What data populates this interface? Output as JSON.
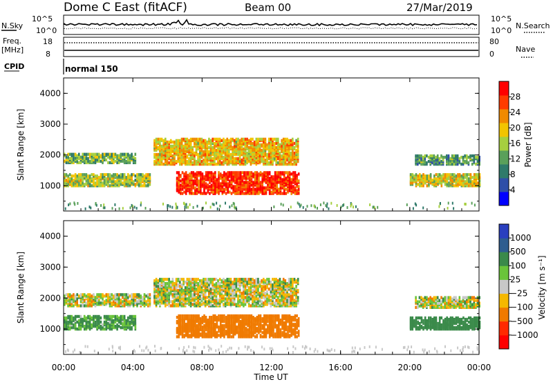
{
  "header": {
    "title": "Dome C East (fitACF)",
    "beam": "Beam 00",
    "date": "27/Mar/2019"
  },
  "aux_panels": {
    "nsky_label": "N.Sky",
    "nsky_ticks": [
      "10^5",
      "10^0"
    ],
    "nsearch_label": "N.Search",
    "nsearch_ticks": [
      "10^5",
      "10^0"
    ],
    "freq_label_1": "Freq.",
    "freq_label_2": "[MHz]",
    "freq_ticks": [
      "18",
      "8"
    ],
    "nave_label": "Nave",
    "nave_ticks": [
      "80",
      "0"
    ],
    "cpid_label": "CPID",
    "cpid_value": "normal 150"
  },
  "chart_data": [
    {
      "type": "heatmap",
      "title": "",
      "xlabel": "",
      "ylabel": "Slant Range [km]",
      "xlim": [
        0,
        24
      ],
      "ylim": [
        180,
        4500
      ],
      "y_ticks": [
        "1000",
        "2000",
        "3000",
        "4000"
      ],
      "x_ticks": [
        "00:00",
        "04:00",
        "08:00",
        "12:00",
        "16:00",
        "20:00",
        "00:00"
      ],
      "colorbar": {
        "label": "Power [dB]",
        "ticks": [
          "28",
          "24",
          "20",
          "16",
          "12",
          "8",
          "4"
        ],
        "levels": [
          "#0000ff",
          "#2f4fa8",
          "#2f7a6a",
          "#5aa05a",
          "#a6cf3f",
          "#f2c400",
          "#f08a00",
          "#ff3c00",
          "#ff0000"
        ]
      },
      "regions": [
        {
          "t0": 0.0,
          "t1": 4.2,
          "r0": 1700,
          "r1": 2000,
          "value_db": 12
        },
        {
          "t0": 0.0,
          "t1": 5.0,
          "r0": 950,
          "r1": 1350,
          "value_db": 14
        },
        {
          "t0": 5.2,
          "t1": 13.6,
          "r0": 1650,
          "r1": 2500,
          "value_db": 18
        },
        {
          "t0": 6.5,
          "t1": 13.6,
          "r0": 700,
          "r1": 1400,
          "value_db": 26
        },
        {
          "t0": 20.3,
          "t1": 24.0,
          "r0": 1650,
          "r1": 1950,
          "value_db": 10
        },
        {
          "t0": 20.0,
          "t1": 24.0,
          "r0": 950,
          "r1": 1350,
          "value_db": 16
        }
      ]
    },
    {
      "type": "heatmap",
      "title": "",
      "xlabel": "Time UT",
      "ylabel": "Slant Range [km]",
      "xlim": [
        0,
        24
      ],
      "ylim": [
        180,
        4500
      ],
      "y_ticks": [
        "1000",
        "2000",
        "3000",
        "4000"
      ],
      "x_ticks": [
        "00:00",
        "04:00",
        "08:00",
        "12:00",
        "16:00",
        "20:00",
        "00:00"
      ],
      "colorbar": {
        "label": "Velocity [m s⁻¹]",
        "ticks": [
          "1000",
          "500",
          "100",
          "25",
          "−25",
          "−100",
          "−500",
          "−1000"
        ],
        "levels": [
          "#2a3fbf",
          "#2e5d8f",
          "#3a8a4a",
          "#6ac43a",
          "#c8c8c8",
          "#f5b800",
          "#f07a00",
          "#ff2a00",
          "#ff0000"
        ]
      },
      "regions": [
        {
          "t0": 0.0,
          "t1": 5.0,
          "r0": 1700,
          "r1": 2100,
          "value_ms": 0
        },
        {
          "t0": 0.0,
          "t1": 4.2,
          "r0": 950,
          "r1": 1400,
          "value_ms": 150
        },
        {
          "t0": 5.2,
          "t1": 13.6,
          "r0": 1700,
          "r1": 2600,
          "value_ms": 0
        },
        {
          "t0": 6.5,
          "t1": 13.6,
          "r0": 700,
          "r1": 1400,
          "value_ms": -300
        },
        {
          "t0": 20.3,
          "t1": 24.0,
          "r0": 1650,
          "r1": 2000,
          "value_ms": 0
        },
        {
          "t0": 20.0,
          "t1": 24.0,
          "r0": 950,
          "r1": 1350,
          "value_ms": 300
        }
      ]
    }
  ]
}
